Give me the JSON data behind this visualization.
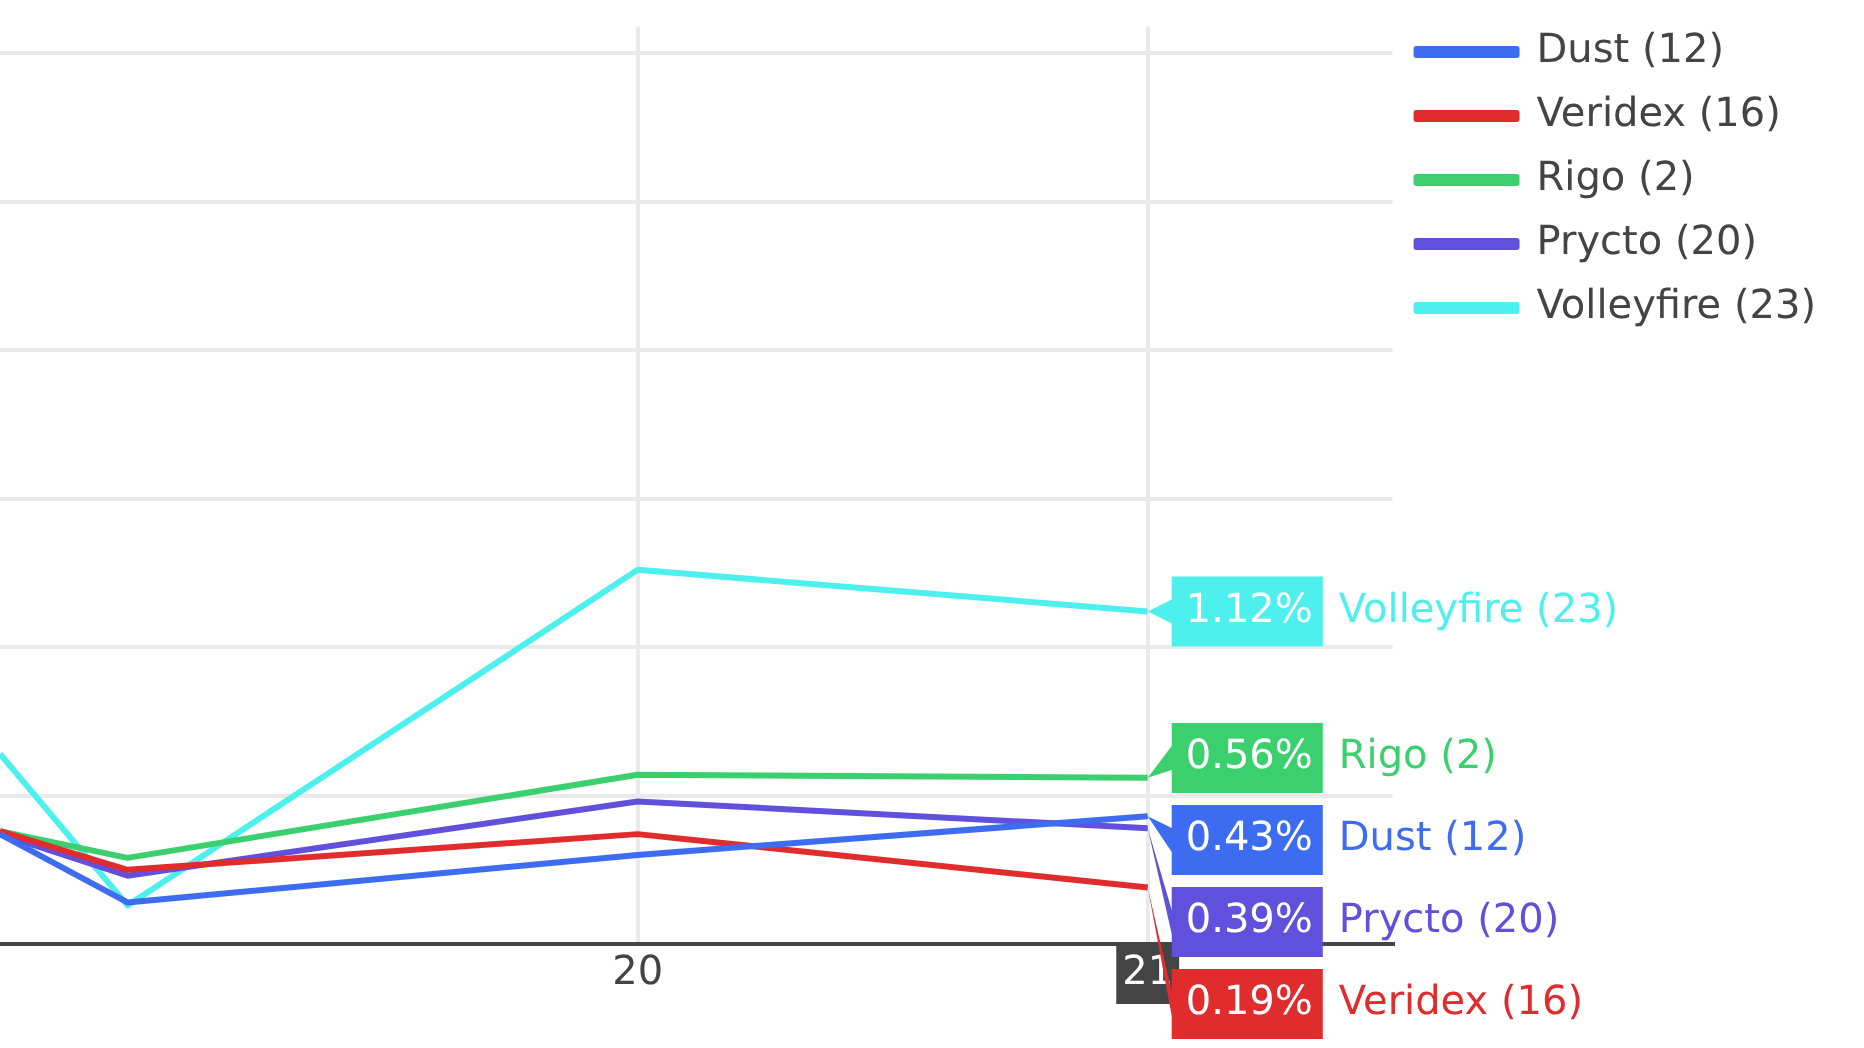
{
  "chart_data": {
    "type": "line",
    "x": [
      18.75,
      19,
      20,
      21
    ],
    "xlim": [
      18.75,
      21.48
    ],
    "xticks": [
      20,
      21
    ],
    "ylim": [
      0,
      3.09
    ],
    "yticks": [
      {
        "value": 0,
        "label": null
      },
      {
        "value": 0.5,
        "label": null
      },
      {
        "value": 1,
        "label": null
      },
      {
        "value": 1.5,
        "label": null
      },
      {
        "value": 2,
        "label": null
      },
      {
        "value": 2.5,
        "label": null
      },
      {
        "value": 3,
        "label": null
      }
    ],
    "grid": true,
    "legend": "top right",
    "marker": "none",
    "line_style": "solid",
    "series": [
      {
        "name": "Dust (12)",
        "color": "#3d6cf0",
        "values": [
          0.37,
          0.14,
          0.3,
          0.43
        ],
        "value_labels": [
          null,
          null,
          null,
          "0.43%"
        ]
      },
      {
        "name": "Veridex (16)",
        "color": "#e02c2c",
        "values": [
          0.38,
          0.25,
          0.37,
          0.19
        ],
        "value_labels": [
          null,
          null,
          null,
          "0.19%"
        ]
      },
      {
        "name": "Rigo (2)",
        "color": "#3ccf6e",
        "values": [
          0.38,
          0.29,
          0.57,
          0.56
        ],
        "value_labels": [
          null,
          null,
          null,
          "0.56%"
        ]
      },
      {
        "name": "Prycto (20)",
        "color": "#6050dc",
        "values": [
          0.37,
          0.23,
          0.48,
          0.39
        ],
        "value_labels": [
          null,
          null,
          null,
          "0.39%"
        ]
      },
      {
        "name": "Volleyfire (23)",
        "color": "#4ef0ee",
        "values": [
          0.64,
          0.13,
          1.26,
          1.12
        ],
        "value_labels": [
          null,
          null,
          null,
          "1.12%"
        ]
      }
    ]
  }
}
